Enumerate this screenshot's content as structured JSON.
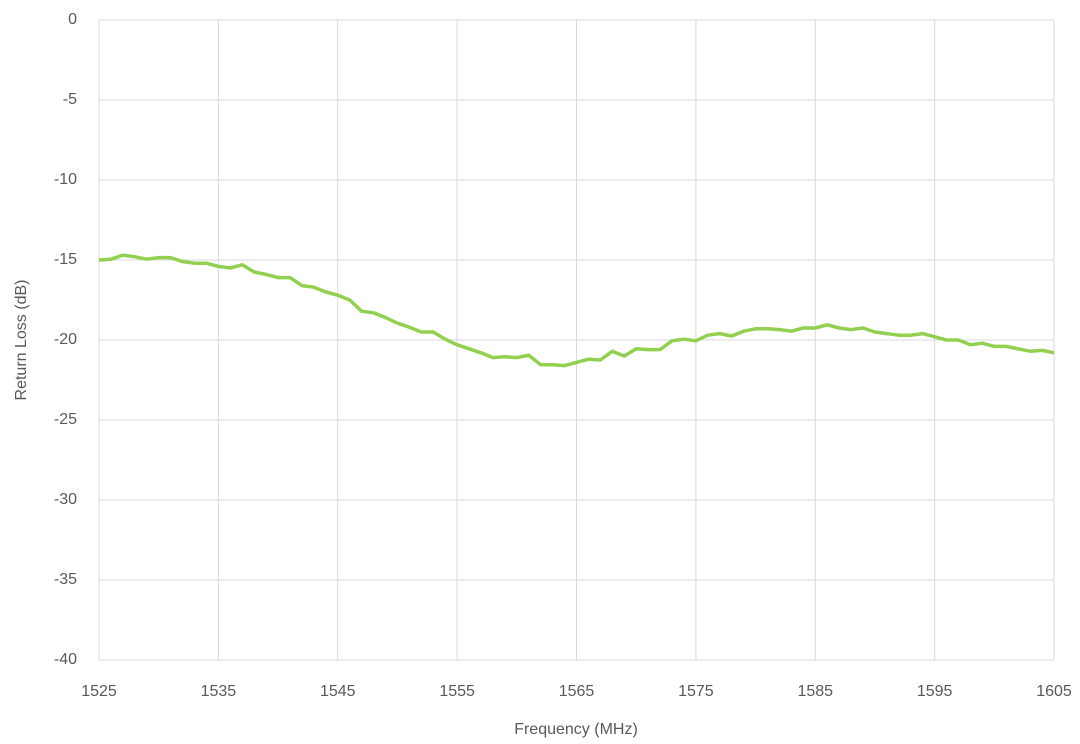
{
  "chart_data": {
    "type": "line",
    "xlabel": "Frequency (MHz)",
    "ylabel": "Return Loss (dB)",
    "x": [
      1525,
      1526,
      1527,
      1528,
      1529,
      1530,
      1531,
      1532,
      1533,
      1534,
      1535,
      1536,
      1537,
      1538,
      1539,
      1540,
      1541,
      1542,
      1543,
      1544,
      1545,
      1546,
      1547,
      1548,
      1549,
      1550,
      1551,
      1552,
      1553,
      1554,
      1555,
      1556,
      1557,
      1558,
      1559,
      1560,
      1561,
      1562,
      1563,
      1564,
      1565,
      1566,
      1567,
      1568,
      1569,
      1570,
      1571,
      1572,
      1573,
      1574,
      1575,
      1576,
      1577,
      1578,
      1579,
      1580,
      1581,
      1582,
      1583,
      1584,
      1585,
      1586,
      1587,
      1588,
      1589,
      1590,
      1591,
      1592,
      1593,
      1594,
      1595,
      1596,
      1597,
      1598,
      1599,
      1600,
      1601,
      1602,
      1603,
      1604,
      1605
    ],
    "series": [
      {
        "name": "Return Loss",
        "color": "#92d050",
        "values": [
          -15.0,
          -14.95,
          -14.7,
          -14.8,
          -14.95,
          -14.85,
          -14.85,
          -15.1,
          -15.2,
          -15.2,
          -15.4,
          -15.5,
          -15.3,
          -15.75,
          -15.9,
          -16.1,
          -16.1,
          -16.6,
          -16.7,
          -17.0,
          -17.2,
          -17.5,
          -18.2,
          -18.3,
          -18.6,
          -18.95,
          -19.2,
          -19.5,
          -19.5,
          -19.95,
          -20.3,
          -20.55,
          -20.8,
          -21.1,
          -21.05,
          -21.1,
          -20.95,
          -21.55,
          -21.55,
          -21.6,
          -21.4,
          -21.2,
          -21.25,
          -20.7,
          -21.0,
          -20.55,
          -20.6,
          -20.6,
          -20.05,
          -19.95,
          -20.05,
          -19.7,
          -19.6,
          -19.75,
          -19.45,
          -19.3,
          -19.3,
          -19.35,
          -19.45,
          -19.25,
          -19.25,
          -19.05,
          -19.25,
          -19.35,
          -19.25,
          -19.5,
          -19.6,
          -19.7,
          -19.7,
          -19.6,
          -19.8,
          -20.0,
          -20.0,
          -20.3,
          -20.2,
          -20.4,
          -20.4,
          -20.55,
          -20.7,
          -20.65,
          -20.8
        ]
      }
    ],
    "xlim": [
      1525,
      1605
    ],
    "xticks": [
      1525,
      1535,
      1545,
      1555,
      1565,
      1575,
      1585,
      1595,
      1605
    ],
    "ylim": [
      -40,
      0
    ],
    "yticks": [
      0,
      -5,
      -10,
      -15,
      -20,
      -25,
      -30,
      -35,
      -40
    ],
    "grid": true
  }
}
